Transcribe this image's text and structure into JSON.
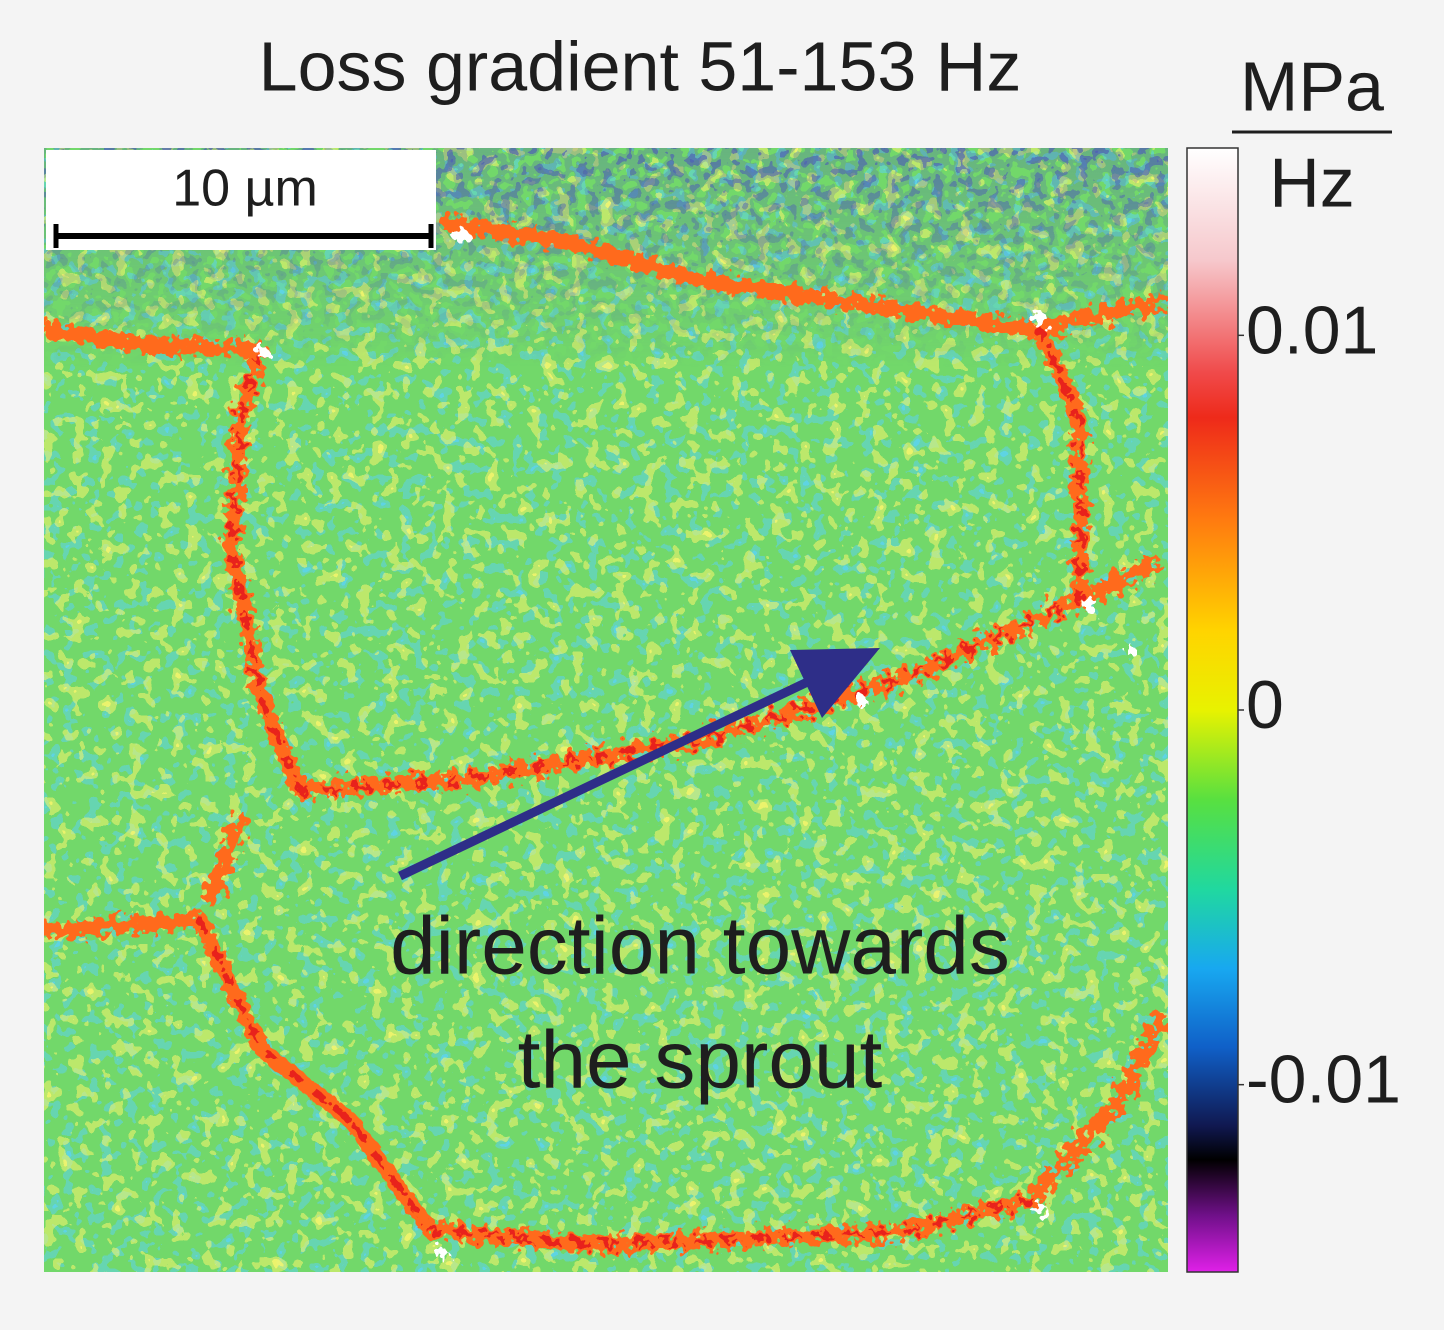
{
  "figure": {
    "title": "Loss gradient 51-153 Hz",
    "scale_bar": {
      "label": "10 µm"
    },
    "annotation": {
      "lines": [
        "direction towards",
        "the sprout"
      ]
    },
    "colorbar": {
      "unit_numerator": "MPa",
      "unit_denominator": "Hz",
      "lim": [
        -0.015,
        0.015
      ],
      "ticks": [
        0.01,
        0,
        -0.01
      ]
    }
  }
}
